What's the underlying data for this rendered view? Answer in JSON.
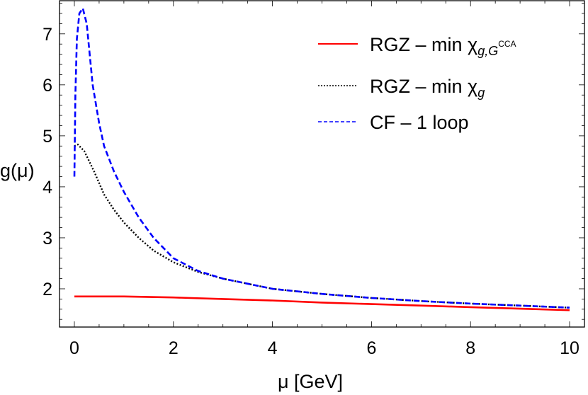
{
  "chart_data": {
    "type": "line",
    "xlabel": "μ [GeV]",
    "ylabel": "g(μ)",
    "xlim": [
      -0.3,
      10.3
    ],
    "ylim": [
      1.25,
      7.65
    ],
    "xticks": [
      "0",
      "2",
      "4",
      "6",
      "8",
      "10"
    ],
    "xtick_values": [
      0,
      2,
      4,
      6,
      8,
      10
    ],
    "yticks": [
      "2",
      "3",
      "4",
      "5",
      "6",
      "7"
    ],
    "ytick_values": [
      2,
      3,
      4,
      5,
      6,
      7
    ],
    "grid": false,
    "legend_position": "top-right",
    "series": [
      {
        "name": "RGZ – min χg,GCCA",
        "label_main": "RGZ – min χ",
        "label_sub": "g,G",
        "label_sup": "CCA",
        "color": "#ff0000",
        "style": "solid",
        "x": [
          0,
          1,
          2,
          3,
          4,
          5,
          6,
          7,
          8,
          9,
          10
        ],
        "y": [
          1.85,
          1.85,
          1.83,
          1.8,
          1.77,
          1.73,
          1.7,
          1.67,
          1.64,
          1.61,
          1.58
        ]
      },
      {
        "name": "RGZ – min χg",
        "label_main": "RGZ – min χ",
        "label_sub": "g",
        "label_sup": "",
        "color": "#000000",
        "style": "dotted",
        "x": [
          0,
          0.07,
          0.2,
          0.4,
          0.6,
          0.8,
          1,
          1.3,
          1.6,
          2,
          2.5,
          3,
          4,
          5,
          6,
          7,
          8,
          9,
          10
        ],
        "y": [
          4.8,
          4.83,
          4.7,
          4.3,
          3.85,
          3.55,
          3.3,
          3.0,
          2.75,
          2.52,
          2.33,
          2.2,
          2.0,
          1.9,
          1.82,
          1.76,
          1.71,
          1.67,
          1.63
        ]
      },
      {
        "name": "CF – 1 loop",
        "label_main": "CF – 1 loop",
        "label_sub": "",
        "label_sup": "",
        "color": "#0000ff",
        "style": "dashed",
        "x": [
          0,
          0.02,
          0.05,
          0.1,
          0.17,
          0.25,
          0.37,
          0.5,
          0.6,
          0.8,
          1,
          1.3,
          1.6,
          2,
          2.5,
          3,
          4,
          5,
          6,
          7,
          8,
          9,
          10
        ],
        "y": [
          4.2,
          5.8,
          6.9,
          7.4,
          7.5,
          7.2,
          6.0,
          5.25,
          4.8,
          4.3,
          3.9,
          3.4,
          3.0,
          2.6,
          2.35,
          2.2,
          2.0,
          1.9,
          1.82,
          1.76,
          1.71,
          1.67,
          1.63
        ]
      }
    ]
  }
}
